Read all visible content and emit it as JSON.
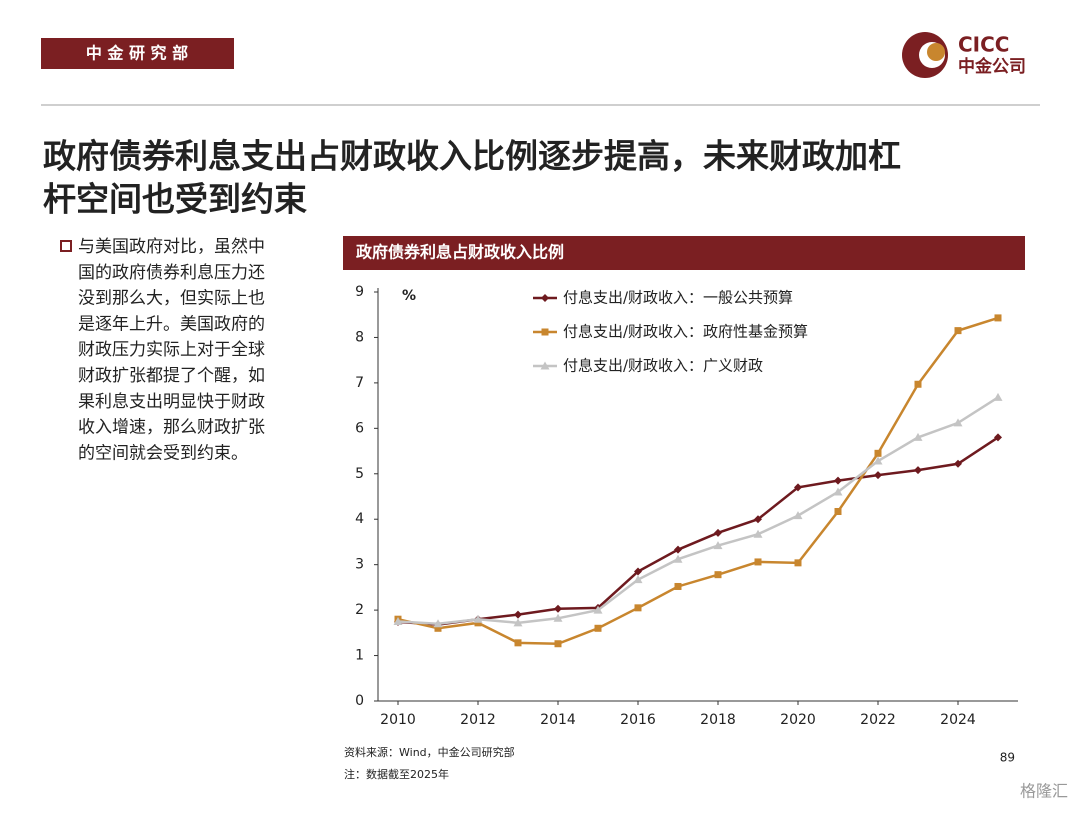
{
  "header": {
    "department": "中 金 研 究 部",
    "logo_en": "CICC",
    "logo_cn": "中金公司"
  },
  "title": [
    "政府债券利息支出占财政收入比例逐步提高，未来财政加杠",
    "杆空间也受到约束"
  ],
  "bullet": [
    "与美国政府对比，虽然中",
    "国的政府债券利息压力还",
    "没到那么大，但实际上也",
    "是逐年上升。美国政府的",
    "财政压力实际上对于全球",
    "财政扩张都提了个醒，如",
    "果利息支出明显快于财政",
    "收入增速，那么财政扩张",
    "的空间就会受到约束。"
  ],
  "footer": {
    "source": "资料来源：Wind，中金公司研究部",
    "note": "注：数据截至2025年",
    "page": "89",
    "watermark": "格隆汇"
  },
  "chart_data": {
    "type": "line",
    "title": "政府债券利息占财政收入比例",
    "y_label": "%",
    "x": [
      2010,
      2011,
      2012,
      2013,
      2014,
      2015,
      2016,
      2017,
      2018,
      2019,
      2020,
      2021,
      2022,
      2023,
      2024,
      2025
    ],
    "series": [
      {
        "name": "付息支出/财政收入：一般公共预算",
        "color": "#6e1a1f",
        "marker": "diamond",
        "values": [
          1.74,
          1.68,
          1.8,
          1.9,
          2.03,
          2.05,
          2.85,
          3.33,
          3.7,
          4.0,
          4.7,
          4.85,
          4.97,
          5.08,
          5.22,
          5.8
        ]
      },
      {
        "name": "付息支出/财政收入：政府性基金预算",
        "color": "#c8862e",
        "marker": "square",
        "values": [
          1.8,
          1.6,
          1.72,
          1.28,
          1.26,
          1.6,
          2.05,
          2.52,
          2.78,
          3.06,
          3.04,
          4.17,
          5.45,
          6.97,
          8.15,
          8.43
        ]
      },
      {
        "name": "付息支出/财政收入：广义财政",
        "color": "#c4c4c4",
        "marker": "triangle",
        "values": [
          1.75,
          1.7,
          1.8,
          1.72,
          1.82,
          2.0,
          2.67,
          3.12,
          3.42,
          3.67,
          4.08,
          4.6,
          5.28,
          5.8,
          6.12,
          6.68
        ]
      }
    ],
    "xlim": [
      2009.5,
      2025.5
    ],
    "xticks": [
      2010,
      2012,
      2014,
      2016,
      2018,
      2020,
      2022,
      2024
    ],
    "ylim": [
      0,
      9
    ],
    "yticks": [
      0,
      1,
      2,
      3,
      4,
      5,
      6,
      7,
      8,
      9
    ],
    "grid": false,
    "legend": "top"
  }
}
